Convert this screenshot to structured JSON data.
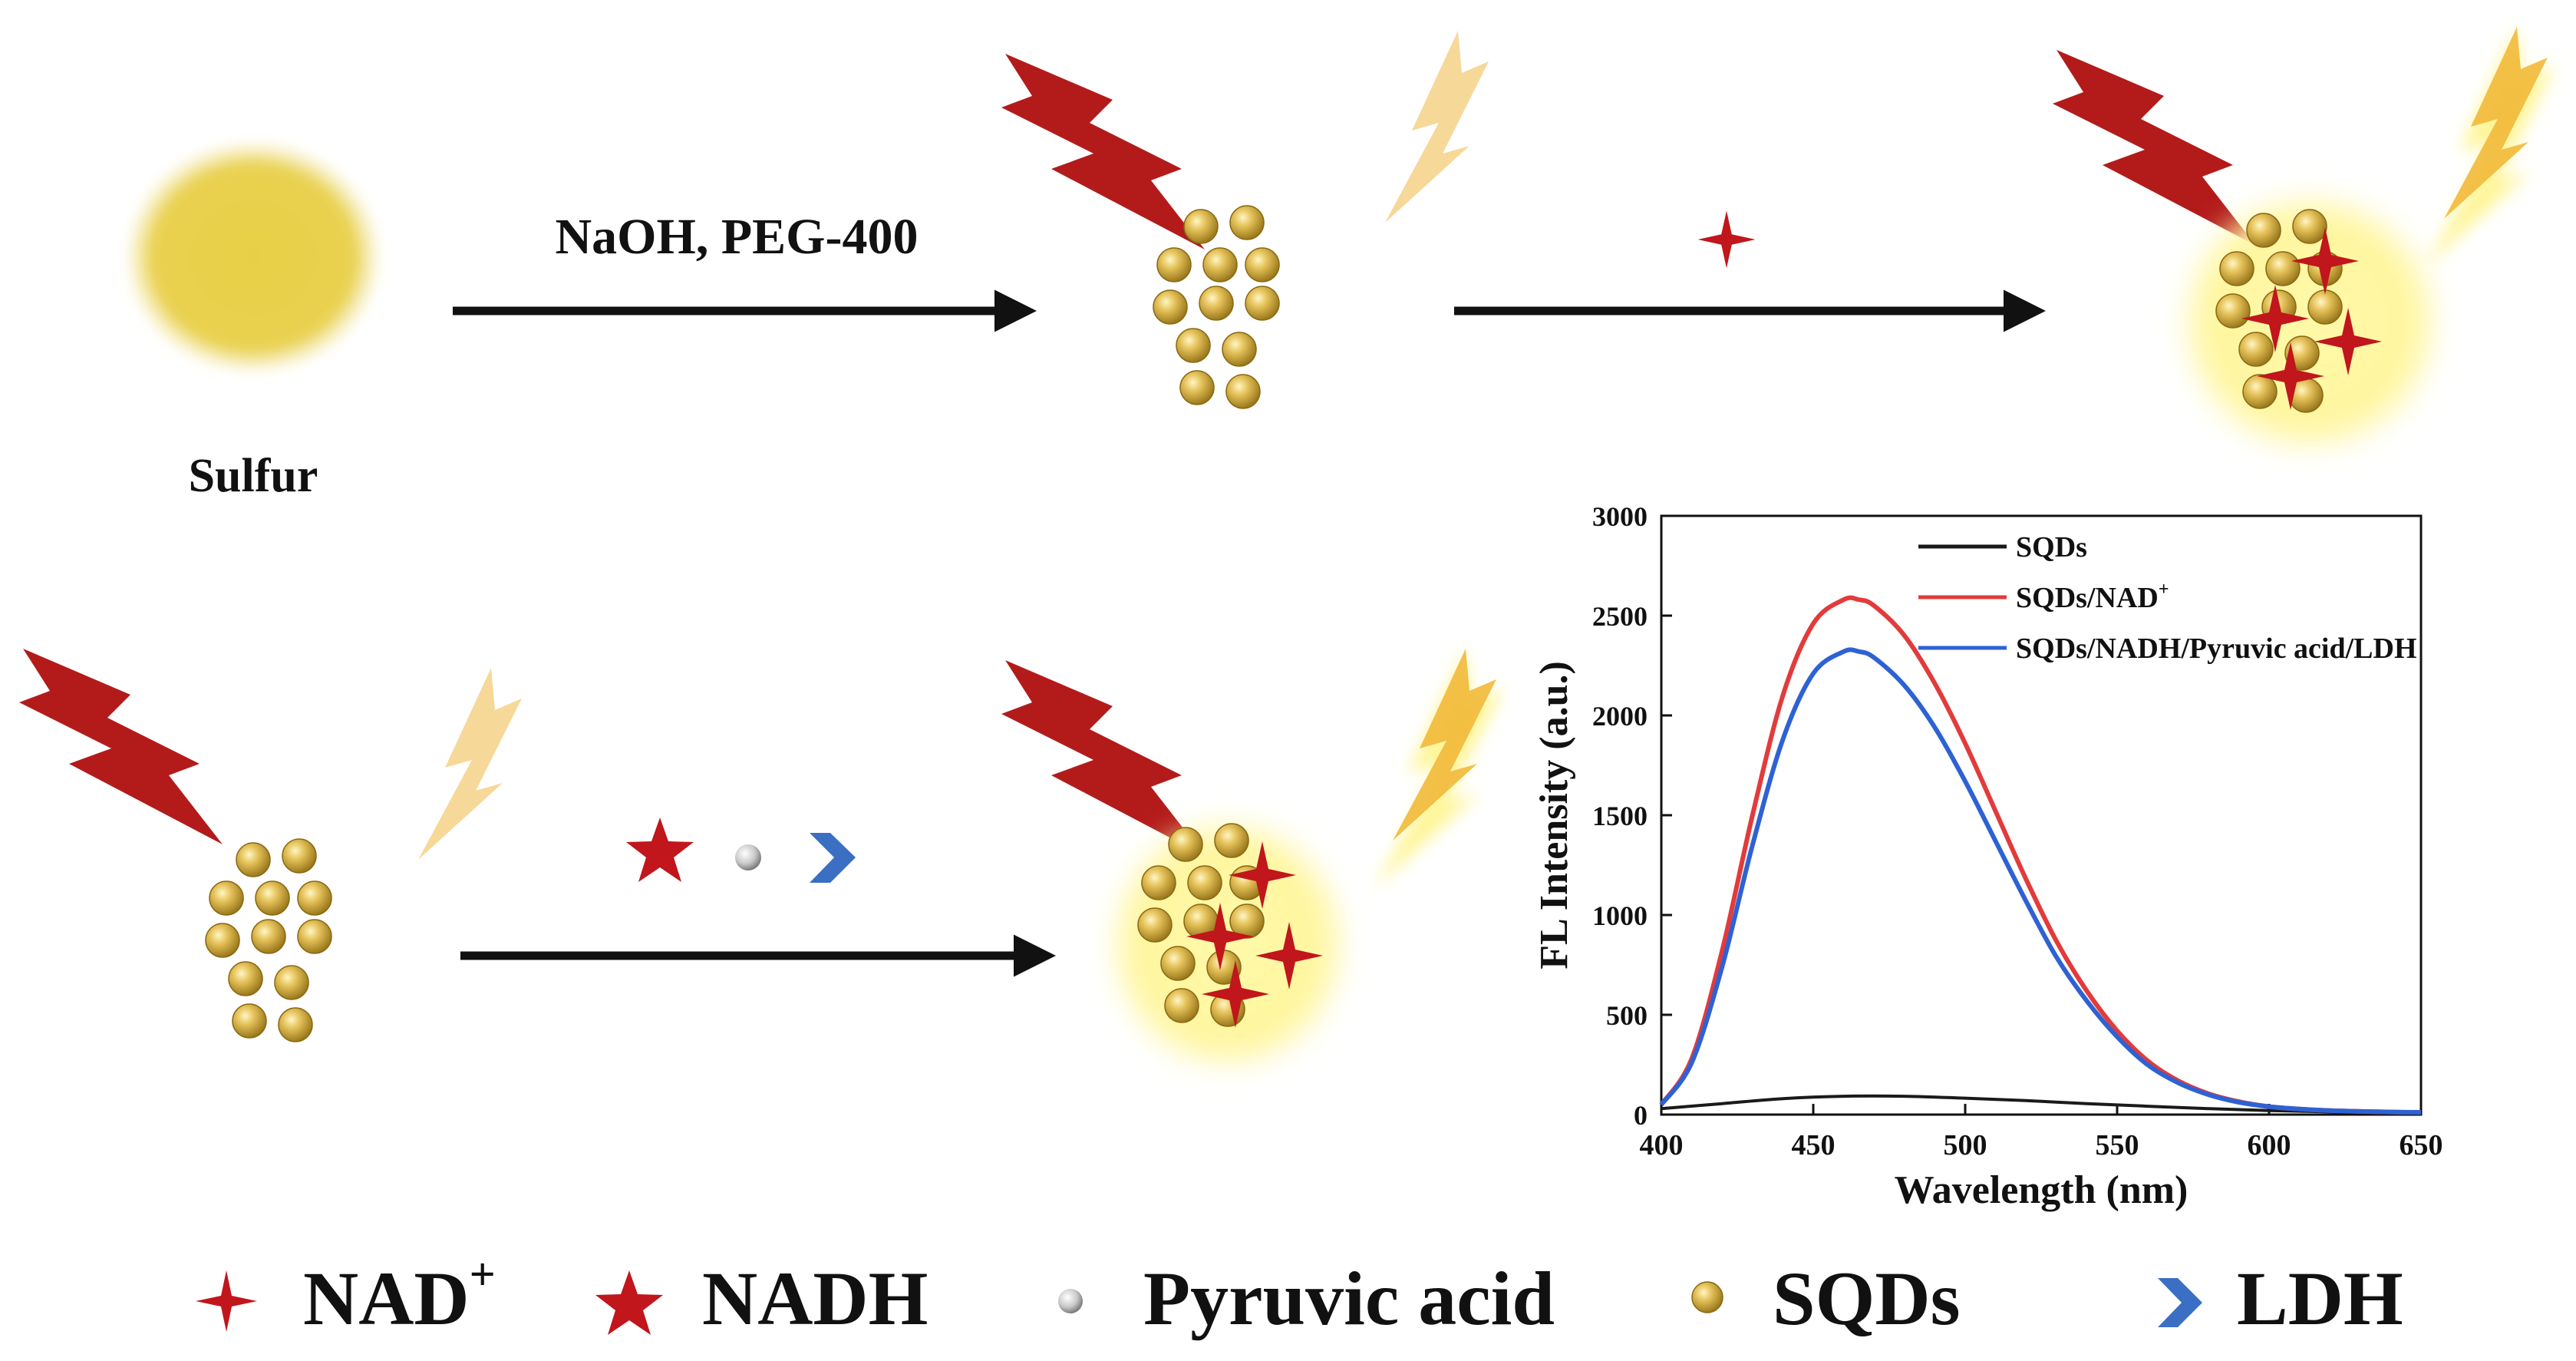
{
  "scheme": {
    "step1_label": "NaOH, PEG-400",
    "sulfur_label": "Sulfur"
  },
  "legend": [
    {
      "label": "NAD",
      "sup": "+",
      "icon": "nad-plus-icon",
      "color": "#c0161c"
    },
    {
      "label": "NADH",
      "sup": "",
      "icon": "nadh-star-icon",
      "color": "#c0161c"
    },
    {
      "label": "Pyruvic acid",
      "sup": "",
      "icon": "pyruvic-acid-sphere-icon",
      "color": "#bfbfbf"
    },
    {
      "label": "SQDs",
      "sup": "",
      "icon": "sqd-sphere-icon",
      "color": "#d7b03d"
    },
    {
      "label": "LDH",
      "sup": "",
      "icon": "ldh-chevron-icon",
      "color": "#3a6fc4"
    }
  ],
  "colors": {
    "excitation": "#b31b1b",
    "emission": "#f3c94e",
    "sqd": "#d7b03d",
    "glow": "#fff3a6",
    "sulfur": "#e8cf45"
  },
  "chart_data": {
    "type": "line",
    "title": "",
    "xlabel": "Wavelength (nm)",
    "ylabel": "FL Intensity (a.u.)",
    "xlim": [
      400,
      650
    ],
    "ylim": [
      0,
      3000
    ],
    "xticks": [
      400,
      450,
      500,
      550,
      600,
      650
    ],
    "yticks": [
      0,
      500,
      1000,
      1500,
      2000,
      2500,
      3000
    ],
    "grid": false,
    "legend_position": "top-right",
    "series": [
      {
        "name": "SQDs",
        "color": "#1a1a1a",
        "x": [
          400,
          420,
          440,
          460,
          480,
          500,
          520,
          540,
          560,
          580,
          600,
          620,
          640,
          650
        ],
        "y": [
          30,
          55,
          80,
          92,
          92,
          82,
          70,
          55,
          42,
          30,
          20,
          14,
          10,
          9
        ]
      },
      {
        "name": "SQDs/NAD",
        "sup": "+",
        "color": "#e23b3b",
        "x": [
          400,
          410,
          420,
          430,
          440,
          450,
          460,
          465,
          470,
          480,
          490,
          500,
          510,
          520,
          530,
          540,
          550,
          560,
          570,
          580,
          590,
          600,
          610,
          620,
          630,
          640,
          650
        ],
        "y": [
          50,
          280,
          820,
          1500,
          2100,
          2460,
          2580,
          2580,
          2550,
          2400,
          2160,
          1860,
          1520,
          1180,
          870,
          620,
          420,
          270,
          170,
          105,
          65,
          40,
          28,
          20,
          16,
          13,
          11
        ]
      },
      {
        "name": "SQDs/NADH/Pyruvic acid/LDH",
        "color": "#2e62d4",
        "x": [
          400,
          410,
          420,
          430,
          440,
          450,
          460,
          465,
          470,
          480,
          490,
          500,
          510,
          520,
          530,
          540,
          550,
          560,
          570,
          580,
          590,
          600,
          610,
          620,
          630,
          640,
          650
        ],
        "y": [
          50,
          260,
          740,
          1350,
          1880,
          2210,
          2320,
          2320,
          2290,
          2150,
          1940,
          1670,
          1370,
          1070,
          790,
          570,
          390,
          250,
          160,
          100,
          62,
          40,
          28,
          20,
          16,
          13,
          11
        ]
      }
    ]
  }
}
